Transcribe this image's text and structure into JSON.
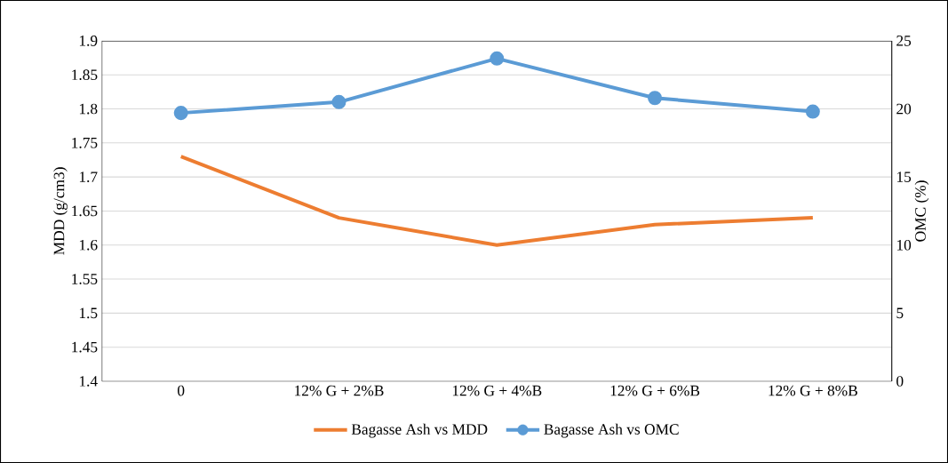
{
  "chart_data": {
    "type": "line",
    "categories": [
      "0",
      "12% G + 2%B",
      "12% G + 4%B",
      "12% G + 6%B",
      "12% G + 8%B"
    ],
    "series": [
      {
        "name": "Bagasse Ash vs MDD",
        "color": "#ed7d31",
        "values": [
          1.73,
          1.64,
          1.6,
          1.63,
          1.64
        ],
        "marker": "none"
      },
      {
        "name": "Bagasse Ash vs OMC",
        "color": "#5b9bd5",
        "values": [
          19.7,
          20.5,
          23.7,
          20.8,
          19.8
        ],
        "axis": "y2",
        "marker": "circle"
      }
    ],
    "ylabel": "MDD (g/cm3)",
    "y2label": "OMC (%)",
    "ylim": [
      1.4,
      1.9
    ],
    "yticks": [
      1.4,
      1.45,
      1.5,
      1.55,
      1.6,
      1.65,
      1.7,
      1.75,
      1.8,
      1.85,
      1.9
    ],
    "y2lim": [
      0,
      25
    ],
    "y2ticks": [
      0,
      5,
      10,
      15,
      20,
      25
    ],
    "grid": "y",
    "legend": "bottom"
  }
}
